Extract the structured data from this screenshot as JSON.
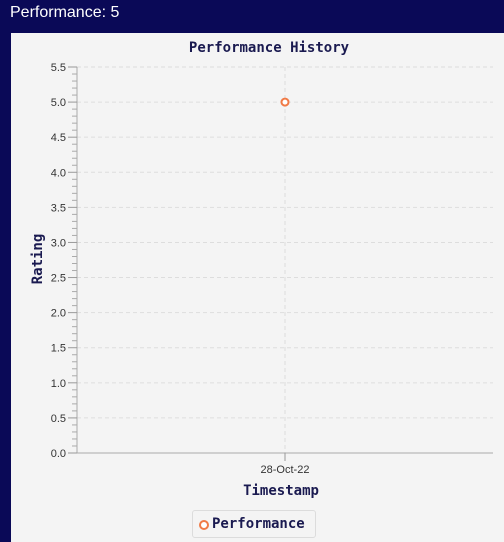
{
  "window": {
    "title": "Performance: 5"
  },
  "colors": {
    "window_background": "#0a0957",
    "panel_background": "#f4f4f4",
    "series_color": "#f07a46",
    "title_color": "#1a1a50",
    "grid_color": "#dddddd"
  },
  "chart_data": {
    "type": "scatter",
    "title": "Performance History",
    "xlabel": "Timestamp",
    "ylabel": "Rating",
    "ylim": [
      0,
      5.5
    ],
    "y_ticks": [
      "0.0",
      "0.5",
      "1.0",
      "1.5",
      "2.0",
      "2.5",
      "3.0",
      "3.5",
      "4.0",
      "4.5",
      "5.0",
      "5.5"
    ],
    "categories": [
      "28-Oct-22"
    ],
    "grid": true,
    "legend_position": "bottom-center",
    "series": [
      {
        "name": "Performance",
        "color": "#f07a46",
        "marker": "hollow-circle",
        "points": [
          {
            "x": "28-Oct-22",
            "y": 5.0
          }
        ]
      }
    ]
  }
}
